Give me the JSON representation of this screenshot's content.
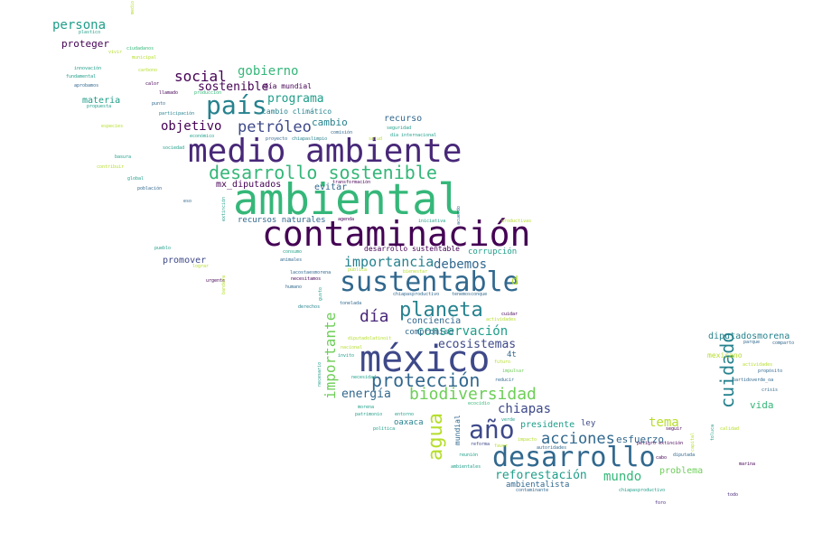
{
  "colors": {
    "background": "#ffffff",
    "palette": [
      "#440154",
      "#482878",
      "#3e4989",
      "#31688e",
      "#26828e",
      "#1f9e89",
      "#35b779",
      "#6ece58",
      "#b5de2b",
      "#fde725"
    ]
  },
  "words": [
    {
      "text": "ambiental",
      "color": "#35b779"
    },
    {
      "text": "medio ambiente",
      "color": "#482878"
    },
    {
      "text": "contaminación",
      "color": "#440154"
    },
    {
      "text": "méxico",
      "color": "#3e4989"
    },
    {
      "text": "sustentable",
      "color": "#31688e"
    },
    {
      "text": "desarrollo sostenible",
      "color": "#35b779"
    },
    {
      "text": "desarrollo",
      "color": "#31688e"
    },
    {
      "text": "país",
      "color": "#26828e"
    },
    {
      "text": "protección",
      "color": "#31688e"
    },
    {
      "text": "año",
      "color": "#3e4989"
    },
    {
      "text": "planeta",
      "color": "#26828e"
    },
    {
      "text": "agua",
      "color": "#b5de2b"
    },
    {
      "text": "biodiversidad",
      "color": "#6ece58"
    },
    {
      "text": "cuidado",
      "color": "#26828e"
    },
    {
      "text": "importante",
      "color": "#6ece58"
    },
    {
      "text": "acciones",
      "color": "#31688e"
    },
    {
      "text": "día",
      "color": "#482878"
    },
    {
      "text": "petróleo",
      "color": "#3e4989"
    },
    {
      "text": "social",
      "color": "#440154"
    },
    {
      "text": "importancia",
      "color": "#26828e"
    },
    {
      "text": "gobierno",
      "color": "#35b779"
    },
    {
      "text": "debemos",
      "color": "#31688e"
    },
    {
      "text": "conservación",
      "color": "#1f9e89"
    },
    {
      "text": "objetivo",
      "color": "#440154"
    },
    {
      "text": "persona",
      "color": "#1f9e89"
    },
    {
      "text": "sostenible",
      "color": "#440154"
    },
    {
      "text": "programa",
      "color": "#1f9e89"
    },
    {
      "text": "ecosistemas",
      "color": "#3e4989"
    },
    {
      "text": "energía",
      "color": "#31688e"
    },
    {
      "text": "mundo",
      "color": "#35b779"
    },
    {
      "text": "reforestación",
      "color": "#1f9e89"
    },
    {
      "text": "chiapas",
      "color": "#3e4989"
    },
    {
      "text": "tema",
      "color": "#b5de2b"
    },
    {
      "text": "cambio",
      "color": "#26828e"
    },
    {
      "text": "proteger",
      "color": "#440154"
    },
    {
      "text": "evitar",
      "color": "#31688e"
    },
    {
      "text": "recurso",
      "color": "#31688e"
    },
    {
      "text": "esfuerzo",
      "color": "#31688e"
    },
    {
      "text": "presidente",
      "color": "#1f9e89"
    },
    {
      "text": "problema",
      "color": "#6ece58"
    },
    {
      "text": "vida",
      "color": "#35b779"
    },
    {
      "text": "conciencia",
      "color": "#31688e"
    },
    {
      "text": "promover",
      "color": "#3e4989"
    },
    {
      "text": "materia",
      "color": "#1f9e89"
    },
    {
      "text": "diputadosmorena",
      "color": "#26828e"
    },
    {
      "text": "mx_diputados",
      "color": "#440154"
    },
    {
      "text": "recursos naturales",
      "color": "#31688e"
    },
    {
      "text": "corrupción",
      "color": "#1f9e89"
    },
    {
      "text": "compromiso",
      "color": "#31688e"
    },
    {
      "text": "oaxaca",
      "color": "#26828e"
    },
    {
      "text": "ley",
      "color": "#3e4989"
    },
    {
      "text": "ambientalista",
      "color": "#31688e"
    },
    {
      "text": "4t",
      "color": "#31688e"
    },
    {
      "text": "mundial",
      "color": "#31688e"
    },
    {
      "text": "d",
      "color": "#b5de2b"
    },
    {
      "text": "mexicano",
      "color": "#b5de2b"
    },
    {
      "text": "día mundial",
      "color": "#440154"
    },
    {
      "text": "cambio climático",
      "color": "#26828e"
    },
    {
      "text": "desarrollo sustentable",
      "color": "#440154"
    },
    {
      "text": "plastico",
      "color": "#1f9e89"
    },
    {
      "text": "ciudadanos",
      "color": "#35b779"
    },
    {
      "text": "vivir",
      "color": "#b5de2b"
    },
    {
      "text": "municipal",
      "color": "#b5de2b"
    },
    {
      "text": "innovación",
      "color": "#1f9e89"
    },
    {
      "text": "fundamental",
      "color": "#1f9e89"
    },
    {
      "text": "carbono",
      "color": "#b5de2b"
    },
    {
      "text": "aprobamos",
      "color": "#31688e"
    },
    {
      "text": "calor",
      "color": "#440154"
    },
    {
      "text": "llamado",
      "color": "#440154"
    },
    {
      "text": "producción",
      "color": "#35b779"
    },
    {
      "text": "propuesta",
      "color": "#1f9e89"
    },
    {
      "text": "punto",
      "color": "#31688e"
    },
    {
      "text": "participación",
      "color": "#26828e"
    },
    {
      "text": "económico",
      "color": "#1f9e89"
    },
    {
      "text": "proyecto",
      "color": "#31688e"
    },
    {
      "text": "chiapaslimpio",
      "color": "#26828e"
    },
    {
      "text": "comisión",
      "color": "#31688e"
    },
    {
      "text": "salud",
      "color": "#b5de2b"
    },
    {
      "text": "seguridad",
      "color": "#1f9e89"
    },
    {
      "text": "día internacional",
      "color": "#1f9e89"
    },
    {
      "text": "especies",
      "color": "#b5de2b"
    },
    {
      "text": "sociedad",
      "color": "#1f9e89"
    },
    {
      "text": "basura",
      "color": "#1f9e89"
    },
    {
      "text": "contribuir",
      "color": "#b5de2b"
    },
    {
      "text": "global",
      "color": "#1f9e89"
    },
    {
      "text": "población",
      "color": "#31688e"
    },
    {
      "text": "transformación",
      "color": "#440154"
    },
    {
      "text": "eso",
      "color": "#31688e"
    },
    {
      "text": "agenda",
      "color": "#440154"
    },
    {
      "text": "iniciativa",
      "color": "#1f9e89"
    },
    {
      "text": "productivas",
      "color": "#b5de2b"
    },
    {
      "text": "pueblo",
      "color": "#1f9e89"
    },
    {
      "text": "lograr",
      "color": "#b5de2b"
    },
    {
      "text": "urgente",
      "color": "#440154"
    },
    {
      "text": "consumo",
      "color": "#1f9e89"
    },
    {
      "text": "animales",
      "color": "#31688e"
    },
    {
      "text": "lacostaesmorena",
      "color": "#31688e"
    },
    {
      "text": "necesitamos",
      "color": "#440154"
    },
    {
      "text": "humano",
      "color": "#31688e"
    },
    {
      "text": "pública",
      "color": "#b5de2b"
    },
    {
      "text": "bienestar",
      "color": "#b5de2b"
    },
    {
      "text": "derechos",
      "color": "#26828e"
    },
    {
      "text": "tonelada",
      "color": "#31688e"
    },
    {
      "text": "chiapasproductivo",
      "color": "#31688e"
    },
    {
      "text": "tenemosconque",
      "color": "#31688e"
    },
    {
      "text": "cuidar",
      "color": "#440154"
    },
    {
      "text": "actividades",
      "color": "#b5de2b"
    },
    {
      "text": "nacional",
      "color": "#b5de2b"
    },
    {
      "text": "invito",
      "color": "#1f9e89"
    },
    {
      "text": "diputadolatinoit",
      "color": "#b5de2b"
    },
    {
      "text": "futuro",
      "color": "#b5de2b"
    },
    {
      "text": "impulsar",
      "color": "#6ece58"
    },
    {
      "text": "reducir",
      "color": "#31688e"
    },
    {
      "text": "necesidad",
      "color": "#1f9e89"
    },
    {
      "text": "ecocidio",
      "color": "#35b779"
    },
    {
      "text": "morena",
      "color": "#1f9e89"
    },
    {
      "text": "patrimonio",
      "color": "#1f9e89"
    },
    {
      "text": "entorno",
      "color": "#1f9e89"
    },
    {
      "text": "verde",
      "color": "#1f9e89"
    },
    {
      "text": "política",
      "color": "#1f9e89"
    },
    {
      "text": "impacto",
      "color": "#b5de2b"
    },
    {
      "text": "reforma",
      "color": "#3e4989"
    },
    {
      "text": "favor",
      "color": "#b5de2b"
    },
    {
      "text": "autoridades",
      "color": "#31688e"
    },
    {
      "text": "reunión",
      "color": "#1f9e89"
    },
    {
      "text": "ambientales",
      "color": "#1f9e89"
    },
    {
      "text": "contaminante",
      "color": "#31688e"
    },
    {
      "text": "chiapasproductivo",
      "color": "#1f9e89"
    },
    {
      "text": "parque",
      "color": "#31688e"
    },
    {
      "text": "comparto",
      "color": "#31688e"
    },
    {
      "text": "actividades",
      "color": "#b5de2b"
    },
    {
      "text": "propósito",
      "color": "#31688e"
    },
    {
      "text": "partidoverde_oa",
      "color": "#31688e"
    },
    {
      "text": "crisis",
      "color": "#31688e"
    },
    {
      "text": "seguir",
      "color": "#440154"
    },
    {
      "text": "peligro extinción",
      "color": "#440154"
    },
    {
      "text": "calidad",
      "color": "#b5de2b"
    },
    {
      "text": "cabo",
      "color": "#440154"
    },
    {
      "text": "diputada",
      "color": "#31688e"
    },
    {
      "text": "marina",
      "color": "#440154"
    },
    {
      "text": "foro",
      "color": "#482878"
    },
    {
      "text": "todo",
      "color": "#482878"
    },
    {
      "text": "toluca",
      "color": "#1f9e89"
    },
    {
      "text": "extinción",
      "color": "#1f9e89"
    },
    {
      "text": "necesario",
      "color": "#1f9e89"
    },
    {
      "text": "gusto",
      "color": "#1f9e89"
    },
    {
      "text": "acuerdo",
      "color": "#31688e"
    },
    {
      "text": "medio",
      "color": "#b5de2b"
    },
    {
      "text": "bandera",
      "color": "#b5de2b"
    },
    {
      "text": "capital",
      "color": "#b5de2b"
    }
  ]
}
